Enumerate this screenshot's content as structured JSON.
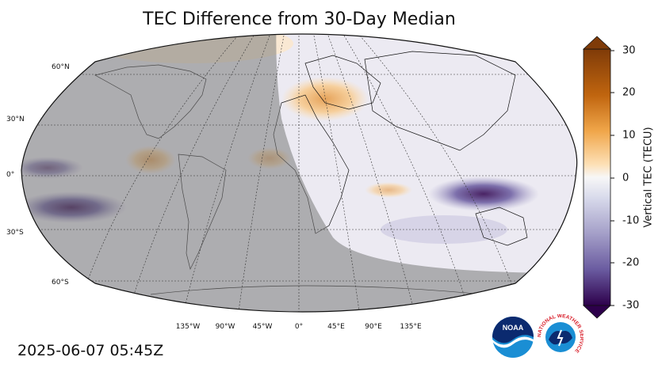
{
  "title": "TEC Difference from 30-Day Median",
  "timestamp": "2025-06-07 05:45Z",
  "lat_labels": [
    "60°N",
    "30°N",
    "0°",
    "30°S",
    "60°S"
  ],
  "lon_labels": [
    "135°W",
    "90°W",
    "45°W",
    "0°",
    "45°E",
    "90°E",
    "135°E"
  ],
  "colorbar": {
    "label": "Vertical TEC (TECU)",
    "ticks": [
      "30",
      "20",
      "10",
      "0",
      "-10",
      "-20",
      "-30"
    ],
    "min": -30,
    "max": 30,
    "colors": {
      "high": "#7f3b08",
      "mid_high": "#e08214",
      "neutral": "#f7f7f7",
      "mid_low": "#8073ac",
      "low": "#2d004b"
    }
  },
  "logos": {
    "noaa_text": "NOAA",
    "nws_text": "NATIONAL WEATHER SERVICE"
  },
  "icons": [
    "noaa-logo-icon",
    "nws-logo-icon"
  ]
}
